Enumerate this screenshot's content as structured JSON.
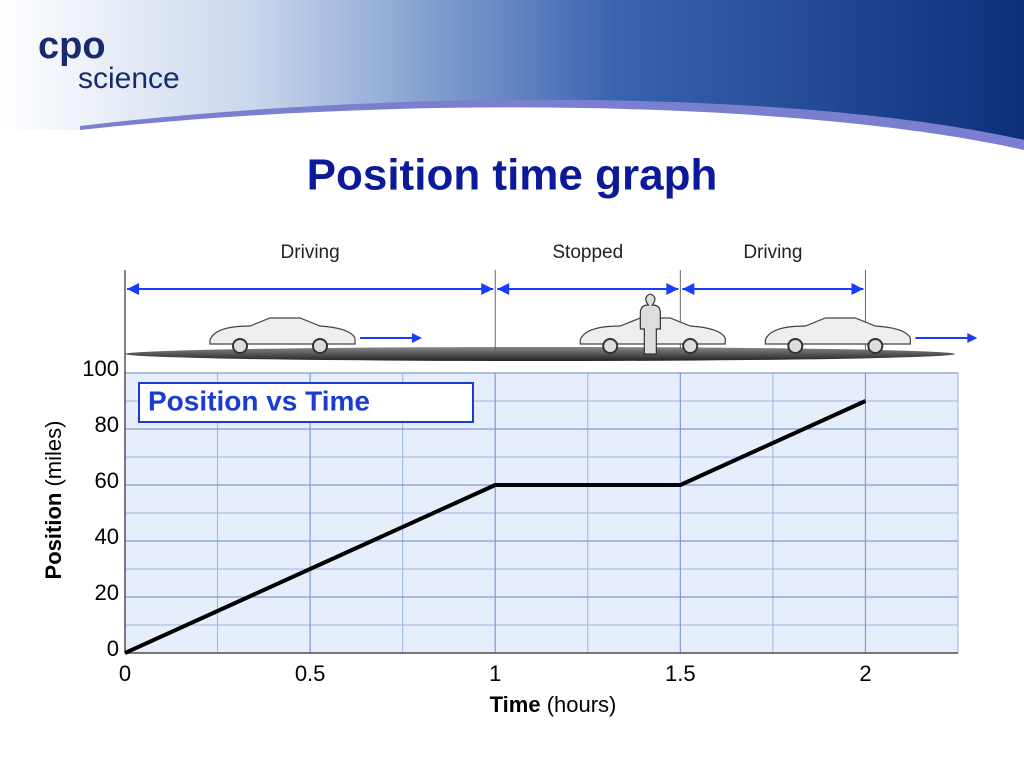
{
  "logo": {
    "top": "cpo",
    "bottom": "science"
  },
  "slide_title": "Position time graph",
  "chart_data": {
    "type": "line",
    "title": "Position vs Time",
    "xlabel": {
      "name": "Time",
      "unit": "(hours)"
    },
    "ylabel": {
      "name": "Position",
      "unit": "(miles)"
    },
    "x": [
      0,
      1,
      1.5,
      2
    ],
    "series": [
      {
        "color": "#000000",
        "values": [
          0,
          60,
          60,
          90
        ]
      }
    ],
    "xlim": [
      0,
      2.25
    ],
    "ylim": [
      0,
      100
    ],
    "xticks": [
      0,
      0.5,
      1,
      1.5,
      2
    ],
    "yticks": [
      0,
      20,
      40,
      60,
      80,
      100
    ],
    "minor_xgrid": [
      0.25,
      0.75,
      1.25,
      1.75,
      2.25
    ],
    "minor_ygrid": [
      10,
      30,
      50,
      70,
      90
    ],
    "grid": true,
    "segments": [
      {
        "label": "Driving",
        "x": [
          0,
          1
        ]
      },
      {
        "label": "Stopped",
        "x": [
          1,
          1.5
        ]
      },
      {
        "label": "Driving",
        "x": [
          1.5,
          2
        ]
      }
    ]
  }
}
